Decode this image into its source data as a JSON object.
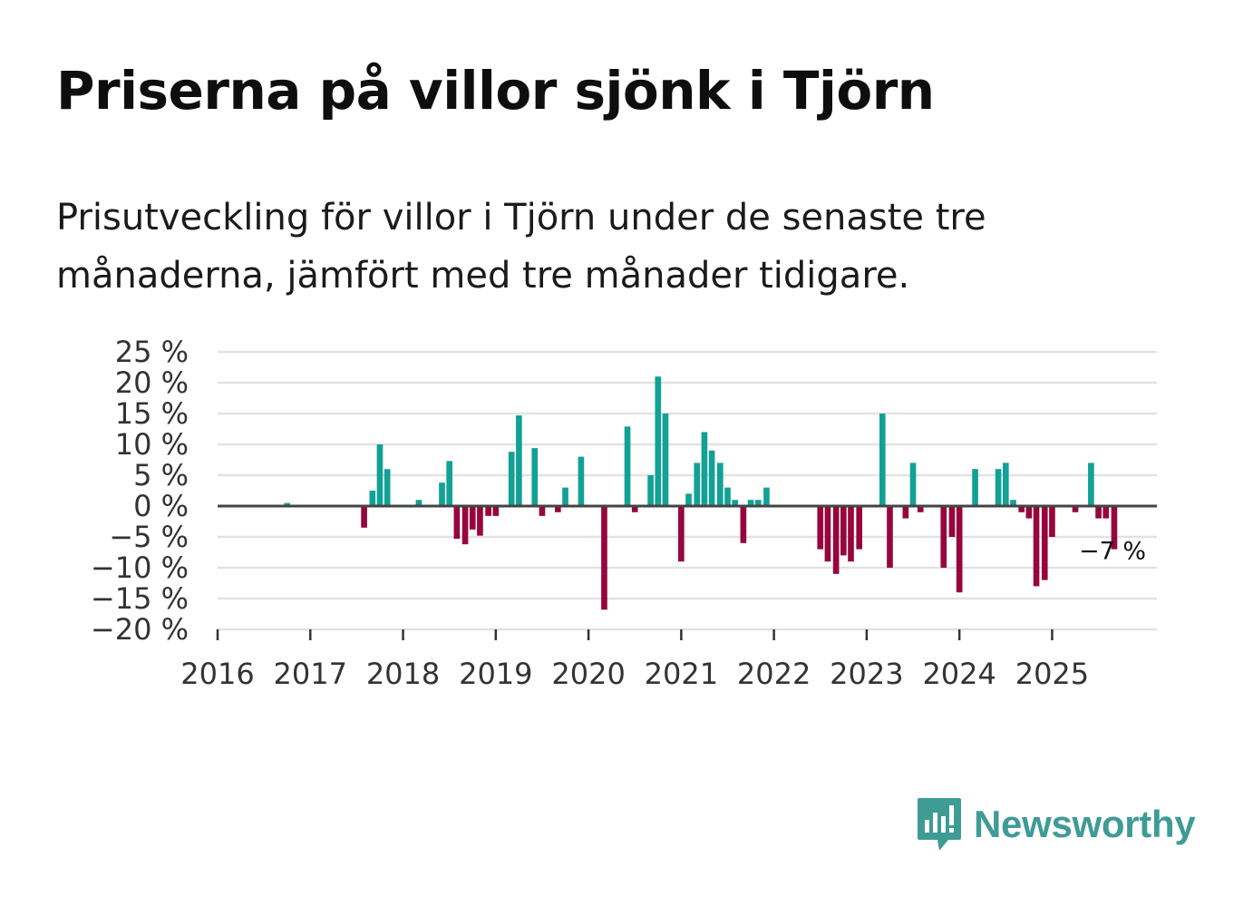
{
  "title": "Priserna på villor sjönk i Tjörn",
  "subtitle": "Prisutveckling för villor i Tjörn under de senaste tre månaderna, jämfört med tre månader tidigare.",
  "brand": "Newsworthy",
  "colors": {
    "positive": "#12a195",
    "negative": "#96063d",
    "grid": "#e2e2e2",
    "zero_line": "#444444",
    "brand": "#3f9b95"
  },
  "chart_data": {
    "type": "bar",
    "title": "Priserna på villor sjönk i Tjörn",
    "xlabel": "",
    "ylabel": "",
    "ylim": [
      -20,
      25
    ],
    "xlim": [
      2016.0,
      2026.13
    ],
    "y_ticks": [
      25,
      20,
      15,
      10,
      5,
      0,
      -5,
      -10,
      -15,
      -20
    ],
    "y_tick_labels": [
      "25 %",
      "20 %",
      "15 %",
      "10 %",
      "5 %",
      "0 %",
      "−5 %",
      "−10 %",
      "−15 %",
      "−20 %"
    ],
    "x_ticks": [
      2016,
      2017,
      2018,
      2019,
      2020,
      2021,
      2022,
      2023,
      2024,
      2025
    ],
    "x_tick_labels": [
      "2016",
      "2017",
      "2018",
      "2019",
      "2020",
      "2021",
      "2022",
      "2023",
      "2024",
      "2025"
    ],
    "annotation": {
      "text": "−7 %",
      "value": -7
    },
    "points": [
      {
        "x": 2016.75,
        "y": 0.5
      },
      {
        "x": 2017.58,
        "y": -3.5
      },
      {
        "x": 2017.67,
        "y": 2.5
      },
      {
        "x": 2017.75,
        "y": 10
      },
      {
        "x": 2017.83,
        "y": 6
      },
      {
        "x": 2018.17,
        "y": 1
      },
      {
        "x": 2018.42,
        "y": 3.8
      },
      {
        "x": 2018.5,
        "y": 7.3
      },
      {
        "x": 2018.58,
        "y": -5.3
      },
      {
        "x": 2018.67,
        "y": -6.2
      },
      {
        "x": 2018.75,
        "y": -3.8
      },
      {
        "x": 2018.83,
        "y": -4.8
      },
      {
        "x": 2018.92,
        "y": -1.6
      },
      {
        "x": 2019.0,
        "y": -1.6
      },
      {
        "x": 2019.17,
        "y": 8.8
      },
      {
        "x": 2019.25,
        "y": 14.7
      },
      {
        "x": 2019.42,
        "y": 9.4
      },
      {
        "x": 2019.5,
        "y": -1.6
      },
      {
        "x": 2019.67,
        "y": -1
      },
      {
        "x": 2019.75,
        "y": 3
      },
      {
        "x": 2019.92,
        "y": 8
      },
      {
        "x": 2020.17,
        "y": -16.8
      },
      {
        "x": 2020.42,
        "y": 12.9
      },
      {
        "x": 2020.5,
        "y": -1
      },
      {
        "x": 2020.67,
        "y": 5
      },
      {
        "x": 2020.75,
        "y": 21
      },
      {
        "x": 2020.83,
        "y": 15
      },
      {
        "x": 2021.0,
        "y": -9
      },
      {
        "x": 2021.08,
        "y": 2
      },
      {
        "x": 2021.17,
        "y": 7
      },
      {
        "x": 2021.25,
        "y": 12
      },
      {
        "x": 2021.33,
        "y": 9
      },
      {
        "x": 2021.42,
        "y": 7
      },
      {
        "x": 2021.5,
        "y": 3
      },
      {
        "x": 2021.58,
        "y": 1
      },
      {
        "x": 2021.67,
        "y": -6
      },
      {
        "x": 2021.75,
        "y": 1
      },
      {
        "x": 2021.83,
        "y": 1
      },
      {
        "x": 2021.92,
        "y": 3
      },
      {
        "x": 2022.5,
        "y": -7
      },
      {
        "x": 2022.58,
        "y": -9
      },
      {
        "x": 2022.67,
        "y": -11
      },
      {
        "x": 2022.75,
        "y": -8
      },
      {
        "x": 2022.83,
        "y": -9
      },
      {
        "x": 2022.92,
        "y": -7
      },
      {
        "x": 2023.17,
        "y": 15
      },
      {
        "x": 2023.25,
        "y": -10
      },
      {
        "x": 2023.42,
        "y": -2
      },
      {
        "x": 2023.5,
        "y": 7
      },
      {
        "x": 2023.58,
        "y": -1
      },
      {
        "x": 2023.83,
        "y": -10
      },
      {
        "x": 2023.92,
        "y": -5
      },
      {
        "x": 2024.0,
        "y": -14
      },
      {
        "x": 2024.17,
        "y": 6
      },
      {
        "x": 2024.42,
        "y": 6
      },
      {
        "x": 2024.5,
        "y": 7
      },
      {
        "x": 2024.58,
        "y": 1
      },
      {
        "x": 2024.67,
        "y": -1
      },
      {
        "x": 2024.75,
        "y": -2
      },
      {
        "x": 2024.83,
        "y": -13
      },
      {
        "x": 2024.92,
        "y": -12
      },
      {
        "x": 2025.0,
        "y": -5
      },
      {
        "x": 2025.25,
        "y": -1
      },
      {
        "x": 2025.42,
        "y": 7
      },
      {
        "x": 2025.5,
        "y": -2
      },
      {
        "x": 2025.58,
        "y": -2
      },
      {
        "x": 2025.67,
        "y": -7
      }
    ]
  }
}
